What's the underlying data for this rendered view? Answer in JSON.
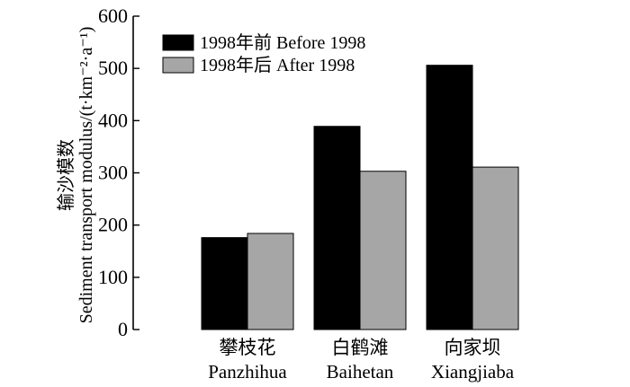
{
  "chart_data": {
    "type": "bar",
    "categories": [
      {
        "zh": "攀枝花",
        "en": "Panzhihua"
      },
      {
        "zh": "白鹤滩",
        "en": "Baihetan"
      },
      {
        "zh": "向家坝",
        "en": "Xiangjiaba"
      }
    ],
    "series": [
      {
        "name": "1998年前 Before 1998",
        "color": "#000000",
        "values": [
          176,
          389,
          506
        ]
      },
      {
        "name": "1998年后 After 1998",
        "color": "#a6a6a6",
        "values": [
          184,
          303,
          311
        ]
      }
    ],
    "ylabel_zh": "输沙模数",
    "ylabel_en": "Sediment transport modulus/(t·km⁻²·a⁻¹)",
    "ylim": [
      0,
      600
    ],
    "yticks": [
      0,
      100,
      200,
      300,
      400,
      500,
      600
    ],
    "legend": "top-left",
    "grid": false
  }
}
